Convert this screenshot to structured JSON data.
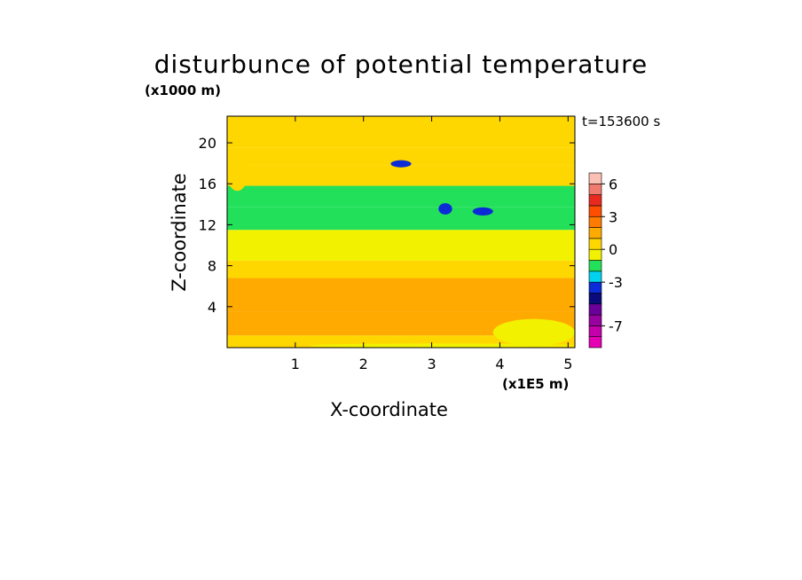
{
  "chart_data": {
    "type": "heatmap",
    "title": "disturbunce of potential temperature",
    "xlabel": "X-coordinate",
    "ylabel": "Z-coordinate",
    "x_unit": "(x1E5 m)",
    "y_unit": "(x1000 m)",
    "timestamp": "t=153600 s",
    "xlim": [
      0,
      5.1
    ],
    "ylim": [
      0,
      22.6
    ],
    "x_ticks": [
      "1",
      "2",
      "3",
      "4",
      "5"
    ],
    "y_ticks": [
      "4",
      "8",
      "12",
      "16",
      "20"
    ],
    "colorbar": {
      "levels": [
        -9,
        -8,
        -7,
        -6,
        -5,
        -4,
        -3,
        -2,
        -1,
        0,
        1,
        2,
        3,
        4,
        5,
        6,
        7
      ],
      "colors": [
        "#e600b4",
        "#c300aa",
        "#9900a0",
        "#6a0099",
        "#0a0a7a",
        "#0a2bd6",
        "#00d2f0",
        "#22e05a",
        "#f2f200",
        "#ffd700",
        "#ffaa00",
        "#ff7a00",
        "#ff4e00",
        "#e82a1f",
        "#f07a6e",
        "#fbc0b4"
      ],
      "tick_labels": [
        "6",
        "3",
        "0",
        "-3",
        "-7"
      ]
    },
    "bands": [
      {
        "z": [
          0,
          1.2
        ],
        "value": 0.3
      },
      {
        "z": [
          1.2,
          3.5
        ],
        "value": 1.1
      },
      {
        "z": [
          3.5,
          6.8
        ],
        "value": 1.6
      },
      {
        "z": [
          6.8,
          8.5
        ],
        "value": 0.5
      },
      {
        "z": [
          8.5,
          10.0
        ],
        "value": -0.3
      },
      {
        "z": [
          10.0,
          11.5
        ],
        "value": -0.6
      },
      {
        "z": [
          11.5,
          13.7
        ],
        "value": -1.4
      },
      {
        "z": [
          13.7,
          15.8
        ],
        "value": -1.1
      },
      {
        "z": [
          15.8,
          17.8
        ],
        "value": 0.4
      },
      {
        "z": [
          17.8,
          19.5
        ],
        "value": 0.6
      },
      {
        "z": [
          19.5,
          22.6
        ],
        "value": 0.2
      }
    ],
    "features": [
      {
        "type": "area",
        "x": [
          0,
          0.3
        ],
        "z": [
          15.3,
          18.5
        ],
        "value": 0.8
      },
      {
        "type": "area",
        "x": [
          0.6,
          1.1
        ],
        "z": [
          16.8,
          17.8
        ],
        "value": 0.6
      },
      {
        "type": "area",
        "x": [
          0.7,
          1.4
        ],
        "z": [
          20.3,
          22.3
        ],
        "value": 0.6
      },
      {
        "type": "area",
        "x": [
          3.2,
          3.9
        ],
        "z": [
          4.0,
          5.5
        ],
        "value": 1.4
      },
      {
        "type": "area",
        "x": [
          0.7,
          1.3
        ],
        "z": [
          4.3,
          5.6
        ],
        "value": 1.6
      },
      {
        "type": "area",
        "x": [
          2.4,
          2.7
        ],
        "z": [
          17.6,
          18.3
        ],
        "value": -3.5
      },
      {
        "type": "area",
        "x": [
          3.1,
          3.3
        ],
        "z": [
          13.0,
          14.1
        ],
        "value": -3.5
      },
      {
        "type": "area",
        "x": [
          3.6,
          3.9
        ],
        "z": [
          12.9,
          13.7
        ],
        "value": -3.5
      },
      {
        "type": "area",
        "x": [
          3.9,
          5.1
        ],
        "z": [
          0.2,
          2.8
        ],
        "value": -0.2
      },
      {
        "type": "area",
        "x": [
          1.2,
          5.1
        ],
        "z": [
          0.0,
          0.4
        ],
        "value": -0.5
      }
    ]
  }
}
